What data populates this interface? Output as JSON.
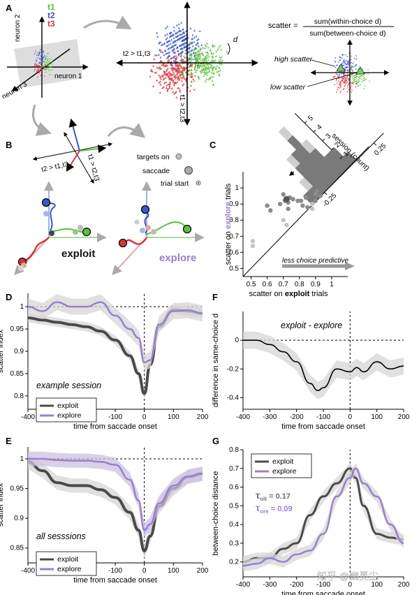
{
  "panels": {
    "A": {
      "label": "A",
      "neuron_axes": [
        "neuron 1",
        "neuron 2",
        "neuron 3"
      ],
      "trial_types": [
        "t1",
        "t2",
        "t3"
      ],
      "trial_colors": [
        "#5cc13c",
        "#3a57c4",
        "#d8333a"
      ],
      "projection_labels": [
        "t2 > t1,t3",
        "t1 > t2,t3"
      ],
      "distance_label": "d",
      "formula_lhs": "scatter =",
      "formula_numerator": "sum(within-choice d)",
      "formula_denominator": "sum(between-choice d)",
      "high_label": "high scatter",
      "low_label": "low scatter"
    },
    "B": {
      "label": "B",
      "projection_labels": [
        "t2 > t1,t3",
        "t1 > t2,t3"
      ],
      "legend": [
        "targets on",
        "saccade",
        "trial start"
      ],
      "exploit_label": "exploit",
      "explore_label": "explore"
    },
    "C": {
      "label": "C",
      "xlabel_pre": "scatter on ",
      "xlabel_bold": "exploit",
      "xlabel_post": " trials",
      "ylabel_pre": "scatter on ",
      "ylabel_bold": "explore",
      "ylabel_post": " trials",
      "xticks": [
        "0.5",
        "0.6",
        "0.7",
        "0.8",
        "0.9",
        "1"
      ],
      "yticks": [
        "0.5",
        "0.6",
        "0.7",
        "0.8",
        "0.9",
        "1"
      ],
      "arrow_label": "less choice predictive",
      "hist_ticks": [
        "-0.25",
        "0.25"
      ],
      "hist_count_ticks": [
        "1",
        "2",
        "3",
        "4",
        "5"
      ],
      "hist_axis_label": "session (count)"
    },
    "D": {
      "label": "D",
      "annotation": "example session",
      "ylabel": "scatter index",
      "yticks": [
        "0.8",
        "0.85",
        "0.9",
        "0.95",
        "1"
      ]
    },
    "E": {
      "label": "E",
      "annotation": "all sesssions",
      "ylabel": "scatter index",
      "yticks": [
        "0.85",
        "0.9",
        "0.95",
        "1"
      ]
    },
    "F": {
      "label": "F",
      "annotation": "exploit - explore",
      "ylabel": "difference in same-choice d",
      "yticks": [
        "-0.4",
        "-0.2",
        "0"
      ]
    },
    "G": {
      "label": "G",
      "ylabel": "between-choice distance",
      "yticks": [
        "0.2",
        "0.3",
        "0.4",
        "0.5",
        "0.6",
        "0.7",
        "0.8"
      ],
      "tau_exploit_sub": "oit",
      "tau_exploit_val": "= 0.17",
      "tau_explore_sub": "ore",
      "tau_explore_val": "= 0.09"
    },
    "xlabel": "time from saccade onset",
    "xticks": [
      "-400",
      "-300",
      "-200",
      "-100",
      "0",
      "100",
      "200"
    ],
    "legend": [
      "exploit",
      "explore"
    ],
    "watermark": "知乎 @幽灵尘"
  },
  "colors": {
    "exploit": "#4a4a4a",
    "explore": "#9b7fcc",
    "band": "#d6d6d6",
    "band_purple": "#ccc0e2",
    "gray_pt": "#8c8c8c"
  },
  "chart_data": [
    {
      "type": "scatter",
      "panel": "C",
      "xlabel": "scatter on exploit trials",
      "ylabel": "scatter on explore trials",
      "xlim": [
        0.45,
        1.1
      ],
      "ylim": [
        0.45,
        1.1
      ],
      "points": [
        [
          0.51,
          0.67
        ],
        [
          0.51,
          0.64
        ],
        [
          0.6,
          0.89
        ],
        [
          0.62,
          0.86
        ],
        [
          0.68,
          0.9
        ],
        [
          0.7,
          0.96
        ],
        [
          0.71,
          0.92
        ],
        [
          0.73,
          0.91
        ],
        [
          0.73,
          0.87
        ],
        [
          0.74,
          0.94
        ],
        [
          0.76,
          0.93
        ],
        [
          0.79,
          0.92
        ],
        [
          0.81,
          0.92
        ],
        [
          0.82,
          0.89
        ],
        [
          0.85,
          0.88
        ],
        [
          0.88,
          0.9
        ],
        [
          0.9,
          0.92
        ],
        [
          0.9,
          0.96
        ],
        [
          0.91,
          0.98
        ],
        [
          0.93,
          0.95
        ],
        [
          0.7,
          0.8
        ],
        [
          0.72,
          0.77
        ],
        [
          0.88,
          0.87
        ],
        [
          0.84,
          0.94
        ]
      ],
      "highlight_point": [
        0.72,
        0.93
      ]
    },
    {
      "type": "bar",
      "panel": "C-histogram",
      "categories": [
        -0.35,
        -0.3,
        -0.25,
        -0.2,
        -0.15,
        -0.1,
        -0.05,
        0,
        0.05
      ],
      "values": [
        1,
        1,
        3,
        4,
        5,
        3,
        2,
        2,
        1
      ],
      "light_values": [
        0,
        1,
        1,
        0,
        1,
        1,
        0,
        0,
        0
      ]
    },
    {
      "type": "line",
      "panel": "D",
      "x": [
        -400,
        -350,
        -300,
        -250,
        -200,
        -150,
        -100,
        -50,
        -20,
        0,
        20,
        50,
        100,
        150,
        200
      ],
      "series": [
        {
          "name": "exploit",
          "values": [
            0.975,
            0.97,
            0.965,
            0.96,
            0.955,
            0.945,
            0.925,
            0.89,
            0.85,
            0.805,
            0.87,
            0.955,
            0.993,
            0.99,
            0.985
          ]
        },
        {
          "name": "explore",
          "values": [
            1.0,
            0.99,
            1.01,
            1.0,
            1.0,
            1.01,
            0.98,
            0.95,
            0.93,
            0.875,
            0.88,
            0.96,
            0.99,
            0.992,
            0.985
          ]
        }
      ],
      "ylim": [
        0.77,
        1.03
      ]
    },
    {
      "type": "line",
      "panel": "E",
      "x": [
        -400,
        -350,
        -300,
        -250,
        -200,
        -150,
        -100,
        -50,
        -20,
        0,
        20,
        50,
        100,
        150,
        200
      ],
      "series": [
        {
          "name": "exploit",
          "values": [
            0.995,
            0.98,
            0.96,
            0.955,
            0.955,
            0.948,
            0.935,
            0.91,
            0.88,
            0.845,
            0.87,
            0.92,
            0.95,
            0.97,
            0.975
          ]
        },
        {
          "name": "explore",
          "values": [
            1.0,
            1.0,
            0.998,
            0.997,
            0.997,
            0.995,
            0.99,
            0.965,
            0.93,
            0.88,
            0.89,
            0.925,
            0.955,
            0.97,
            0.975
          ]
        }
      ],
      "ylim": [
        0.825,
        1.02
      ]
    },
    {
      "type": "line",
      "panel": "F",
      "x": [
        -400,
        -350,
        -300,
        -250,
        -200,
        -150,
        -120,
        -100,
        -50,
        0,
        25,
        50,
        100,
        150,
        200
      ],
      "series": [
        {
          "name": "exploit - explore",
          "values": [
            0.0,
            0.0,
            -0.03,
            -0.08,
            -0.15,
            -0.3,
            -0.35,
            -0.33,
            -0.2,
            -0.22,
            -0.19,
            -0.22,
            -0.15,
            -0.2,
            -0.18
          ]
        }
      ],
      "ylim": [
        -0.48,
        0.2
      ]
    },
    {
      "type": "line",
      "panel": "G",
      "x": [
        -400,
        -350,
        -300,
        -250,
        -200,
        -150,
        -100,
        -50,
        0,
        20,
        50,
        100,
        150,
        200
      ],
      "series": [
        {
          "name": "exploit",
          "values": [
            0.2,
            0.22,
            0.22,
            0.27,
            0.3,
            0.45,
            0.55,
            0.62,
            0.7,
            0.65,
            0.5,
            0.35,
            0.33,
            0.32
          ]
        },
        {
          "name": "explore",
          "values": [
            0.18,
            0.19,
            0.22,
            0.2,
            0.24,
            0.26,
            0.35,
            0.55,
            0.65,
            0.7,
            0.62,
            0.55,
            0.4,
            0.3
          ]
        }
      ],
      "ylim": [
        0.12,
        0.8
      ]
    }
  ]
}
